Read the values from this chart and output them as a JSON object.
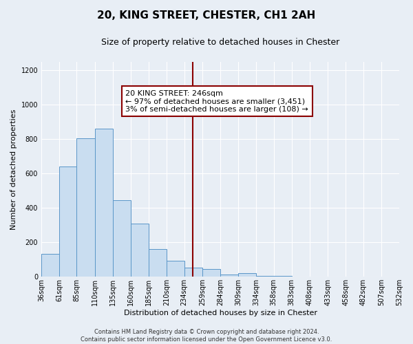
{
  "title": "20, KING STREET, CHESTER, CH1 2AH",
  "subtitle": "Size of property relative to detached houses in Chester",
  "xlabel": "Distribution of detached houses by size in Chester",
  "ylabel": "Number of detached properties",
  "footer_line1": "Contains HM Land Registry data © Crown copyright and database right 2024.",
  "footer_line2": "Contains public sector information licensed under the Open Government Licence v3.0.",
  "bar_edges": [
    36,
    61,
    85,
    110,
    135,
    160,
    185,
    210,
    234,
    259,
    284,
    309,
    334,
    358,
    383,
    408,
    433,
    458,
    482,
    507,
    532
  ],
  "bar_heights": [
    135,
    640,
    805,
    860,
    445,
    310,
    160,
    95,
    55,
    45,
    15,
    20,
    5,
    5,
    3,
    2,
    1,
    1,
    1,
    1
  ],
  "bar_color": "#c9ddf0",
  "bar_edgecolor": "#5a96c8",
  "red_line_x": 246,
  "annotation_title": "20 KING STREET: 246sqm",
  "annotation_line2": "← 97% of detached houses are smaller (3,451)",
  "annotation_line3": "3% of semi-detached houses are larger (108) →",
  "ylim": [
    0,
    1250
  ],
  "yticks": [
    0,
    200,
    400,
    600,
    800,
    1000,
    1200
  ],
  "background_color": "#e8eef5",
  "plot_bg_color": "#e8eef5",
  "grid_color": "#ffffff",
  "title_fontsize": 11,
  "subtitle_fontsize": 9,
  "ylabel_fontsize": 8,
  "xlabel_fontsize": 8,
  "tick_fontsize": 7,
  "footer_fontsize": 6
}
